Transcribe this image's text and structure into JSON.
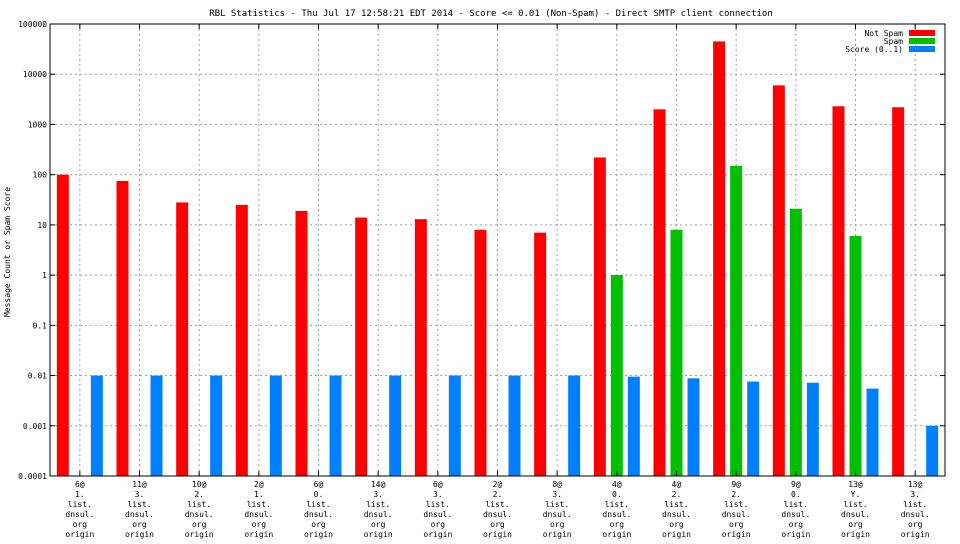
{
  "chart_data": {
    "type": "bar",
    "title": "RBL Statistics - Thu Jul 17 12:58:21 EDT 2014 - Score <= 0.01 (Non-Spam) - Direct SMTP client connection",
    "xlabel": "",
    "ylabel": "Message Count or Spam Score",
    "y_scale": "log",
    "ylim": [
      0.0001,
      100000
    ],
    "y_ticks": [
      "0.0001",
      "0.001",
      "0.01",
      "0.1",
      "1",
      "10",
      "100",
      "1000",
      "10000",
      "100000"
    ],
    "grid": true,
    "legend_position": "top-right",
    "categories": [
      [
        "6@",
        "1.",
        "list.",
        "dnsul.",
        "org",
        "origin"
      ],
      [
        "11@",
        "3.",
        "list.",
        "dnsul.",
        "org",
        "origin"
      ],
      [
        "10@",
        "2.",
        "list.",
        "dnsul.",
        "org",
        "origin"
      ],
      [
        "2@",
        "1.",
        "list.",
        "dnsul.",
        "org",
        "origin"
      ],
      [
        "6@",
        "0.",
        "list.",
        "dnsul.",
        "org",
        "origin"
      ],
      [
        "14@",
        "3.",
        "list.",
        "dnsul.",
        "org",
        "origin"
      ],
      [
        "6@",
        "3.",
        "list.",
        "dnsul.",
        "org",
        "origin"
      ],
      [
        "2@",
        "2.",
        "list.",
        "dnsul.",
        "org",
        "origin"
      ],
      [
        "8@",
        "3.",
        "list.",
        "dnsul.",
        "org",
        "origin"
      ],
      [
        "4@",
        "0.",
        "list.",
        "dnsul.",
        "org",
        "origin"
      ],
      [
        "4@",
        "2.",
        "list.",
        "dnsul.",
        "org",
        "origin"
      ],
      [
        "9@",
        "2.",
        "list.",
        "dnsul.",
        "org",
        "origin"
      ],
      [
        "9@",
        "0.",
        "list.",
        "dnsul.",
        "org",
        "origin"
      ],
      [
        "13@",
        "Y.",
        "list.",
        "dnsul.",
        "org",
        "origin"
      ],
      [
        "13@",
        "3.",
        "list.",
        "dnsul.",
        "org",
        "origin"
      ]
    ],
    "series": [
      {
        "name": "Not Spam",
        "color": "#ff0000",
        "values": [
          100,
          75,
          28,
          25,
          19,
          14,
          13,
          8,
          7,
          220,
          2000,
          45000,
          6000,
          2300,
          2200
        ]
      },
      {
        "name": "Spam",
        "color": "#00c000",
        "values": [
          null,
          null,
          null,
          null,
          null,
          null,
          null,
          null,
          null,
          1,
          8,
          150,
          21,
          6,
          null
        ]
      },
      {
        "name": "Score (0..1)",
        "color": "#0080ff",
        "values": [
          0.01,
          0.01,
          0.01,
          0.01,
          0.01,
          0.01,
          0.01,
          0.01,
          0.01,
          0.0095,
          0.0088,
          0.0076,
          0.0072,
          0.0055,
          0.001
        ]
      }
    ]
  }
}
